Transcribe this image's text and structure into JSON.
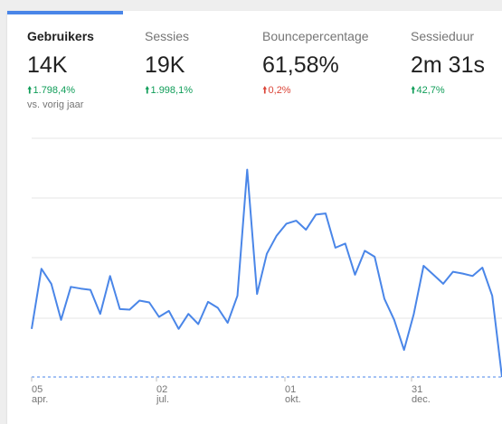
{
  "metrics": {
    "users": {
      "label": "Gebruikers",
      "value": "14K",
      "change": "1.798,4%",
      "direction": "up",
      "compare": "vs. vorig jaar"
    },
    "sessions": {
      "label": "Sessies",
      "value": "19K",
      "change": "1.998,1%",
      "direction": "up"
    },
    "bounce": {
      "label": "Bouncepercentage",
      "value": "61,58%",
      "change": "0,2%",
      "direction": "up"
    },
    "duration": {
      "label": "Sessieduur",
      "value": "2m 31s",
      "change": "42,7%",
      "direction": "up"
    }
  },
  "colors": {
    "accent": "#4a86e8",
    "positive": "#0f9d58",
    "negative": "#db4437",
    "line": "#4a86e8"
  },
  "chart_data": {
    "type": "line",
    "x_ticks": [
      {
        "day": "05",
        "month": "apr."
      },
      {
        "day": "02",
        "month": "jul."
      },
      {
        "day": "01",
        "month": "okt."
      },
      {
        "day": "31",
        "month": "dec."
      }
    ],
    "series": [
      {
        "values": [
          0.8,
          1.8,
          1.55,
          0.95,
          1.5,
          1.47,
          1.45,
          1.05,
          1.68,
          1.13,
          1.12,
          1.27,
          1.24,
          1.0,
          1.1,
          0.8,
          1.05,
          0.88,
          1.25,
          1.15,
          0.9,
          1.35,
          3.45,
          1.38,
          2.05,
          2.35,
          2.55,
          2.6,
          2.45,
          2.7,
          2.72,
          2.15,
          2.22,
          1.7,
          2.1,
          2.0,
          1.3,
          0.95,
          0.45,
          1.05,
          1.85,
          1.7,
          1.55,
          1.75,
          1.72,
          1.68,
          1.82,
          1.35,
          0.0
        ]
      }
    ],
    "grid": true
  }
}
